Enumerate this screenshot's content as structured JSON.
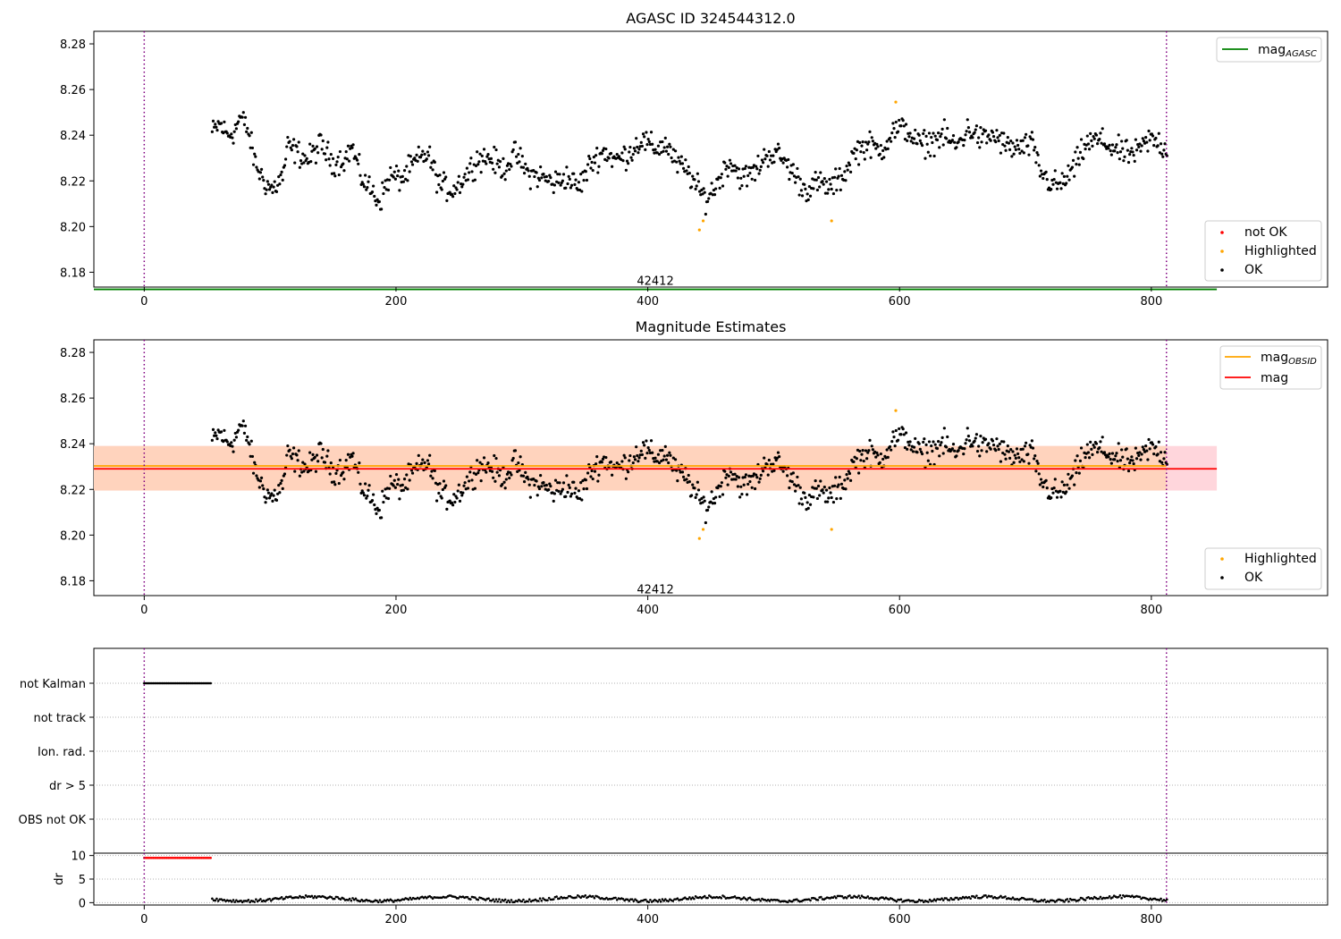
{
  "chart_data": [
    {
      "type": "scatter",
      "title": "AGASC ID 324544312.0",
      "xlim": [
        -40,
        940
      ],
      "ylim": [
        8.1735,
        8.2855
      ],
      "xticks": [
        0,
        200,
        400,
        600,
        800
      ],
      "yticks": [
        8.18,
        8.2,
        8.22,
        8.24,
        8.26,
        8.28
      ],
      "vlines": [
        0,
        812
      ],
      "hlines": [
        {
          "name": "mag_AGASC",
          "y": 8.1725,
          "color": "#008000"
        }
      ],
      "annotation": {
        "text": "42412",
        "x": 406,
        "y": 8.1765
      },
      "legend_upper": [
        {
          "label": "mag",
          "sub": "AGASC",
          "color": "#008000"
        }
      ],
      "legend_lower": [
        {
          "label": "not OK",
          "color": "#ff0000"
        },
        {
          "label": "Highlighted",
          "color": "#ffa500"
        },
        {
          "label": "OK",
          "color": "#000000"
        }
      ],
      "points": "mag_series"
    },
    {
      "type": "scatter",
      "title": "Magnitude Estimates",
      "xlim": [
        -40,
        940
      ],
      "ylim": [
        8.1735,
        8.2855
      ],
      "xticks": [
        0,
        200,
        400,
        600,
        800
      ],
      "yticks": [
        8.18,
        8.2,
        8.22,
        8.24,
        8.26,
        8.28
      ],
      "vlines": [
        0,
        812
      ],
      "band_pink": [
        8.2195,
        8.239
      ],
      "band_orange": [
        8.2195,
        8.239
      ],
      "band_x": [
        -40,
        852
      ],
      "mag_obsid": 8.2295,
      "mag": 8.229,
      "annotation": {
        "text": "42412",
        "x": 406,
        "y": 8.1765
      },
      "legend_upper": [
        {
          "label": "mag",
          "sub": "OBSID",
          "color": "#ffa500"
        },
        {
          "label": "mag",
          "sub": "",
          "color": "#ff0000"
        }
      ],
      "legend_lower": [
        {
          "label": "Highlighted",
          "color": "#ffa500"
        },
        {
          "label": "OK",
          "color": "#000000"
        }
      ],
      "points": "mag_series"
    },
    {
      "type": "scatter",
      "xlim": [
        -40,
        940
      ],
      "categories": [
        "not Kalman",
        "not track",
        "Ion. rad.",
        "dr > 5",
        "OBS not OK"
      ],
      "flag_ranges": [
        {
          "category": "not Kalman",
          "x": [
            0,
            54
          ]
        }
      ],
      "vlines": [
        0,
        812
      ]
    },
    {
      "type": "scatter",
      "xlim": [
        -40,
        940
      ],
      "ylim": [
        -0.5,
        10.5
      ],
      "xticks": [
        0,
        200,
        400,
        600,
        800
      ],
      "yticks": [
        0,
        5,
        10
      ],
      "ylabel": "dr",
      "dr_flagged": {
        "x": [
          0,
          54
        ],
        "value": 9.5,
        "color": "#ff0000"
      },
      "vlines": [
        0,
        812
      ]
    }
  ],
  "mag_series_anchors": [
    [
      54,
      8.241
    ],
    [
      60,
      8.245
    ],
    [
      66,
      8.24
    ],
    [
      72,
      8.242
    ],
    [
      76,
      8.248
    ],
    [
      82,
      8.243
    ],
    [
      88,
      8.228
    ],
    [
      95,
      8.22
    ],
    [
      102,
      8.216
    ],
    [
      110,
      8.222
    ],
    [
      114,
      8.235
    ],
    [
      120,
      8.233
    ],
    [
      130,
      8.229
    ],
    [
      140,
      8.236
    ],
    [
      150,
      8.228
    ],
    [
      160,
      8.23
    ],
    [
      165,
      8.235
    ],
    [
      172,
      8.222
    ],
    [
      180,
      8.216
    ],
    [
      187,
      8.211
    ],
    [
      195,
      8.222
    ],
    [
      205,
      8.221
    ],
    [
      215,
      8.228
    ],
    [
      225,
      8.232
    ],
    [
      235,
      8.218
    ],
    [
      245,
      8.216
    ],
    [
      255,
      8.222
    ],
    [
      265,
      8.23
    ],
    [
      275,
      8.23
    ],
    [
      285,
      8.225
    ],
    [
      295,
      8.232
    ],
    [
      305,
      8.223
    ],
    [
      315,
      8.222
    ],
    [
      325,
      8.219
    ],
    [
      335,
      8.222
    ],
    [
      345,
      8.217
    ],
    [
      355,
      8.228
    ],
    [
      365,
      8.233
    ],
    [
      375,
      8.229
    ],
    [
      385,
      8.232
    ],
    [
      395,
      8.238
    ],
    [
      405,
      8.234
    ],
    [
      415,
      8.236
    ],
    [
      422,
      8.228
    ],
    [
      432,
      8.224
    ],
    [
      440,
      8.216
    ],
    [
      447,
      8.212
    ],
    [
      455,
      8.219
    ],
    [
      465,
      8.229
    ],
    [
      475,
      8.221
    ],
    [
      485,
      8.224
    ],
    [
      495,
      8.232
    ],
    [
      505,
      8.231
    ],
    [
      515,
      8.224
    ],
    [
      525,
      8.216
    ],
    [
      535,
      8.219
    ],
    [
      545,
      8.217
    ],
    [
      555,
      8.222
    ],
    [
      565,
      8.233
    ],
    [
      575,
      8.236
    ],
    [
      585,
      8.233
    ],
    [
      595,
      8.242
    ],
    [
      605,
      8.243
    ],
    [
      615,
      8.236
    ],
    [
      625,
      8.237
    ],
    [
      635,
      8.24
    ],
    [
      645,
      8.235
    ],
    [
      655,
      8.243
    ],
    [
      665,
      8.238
    ],
    [
      675,
      8.24
    ],
    [
      685,
      8.235
    ],
    [
      695,
      8.234
    ],
    [
      705,
      8.236
    ],
    [
      712,
      8.224
    ],
    [
      720,
      8.219
    ],
    [
      728,
      8.218
    ],
    [
      738,
      8.225
    ],
    [
      748,
      8.236
    ],
    [
      758,
      8.238
    ],
    [
      768,
      8.235
    ],
    [
      778,
      8.232
    ],
    [
      788,
      8.232
    ],
    [
      798,
      8.238
    ],
    [
      806,
      8.237
    ],
    [
      812,
      8.233
    ]
  ],
  "highlighted_points": [
    [
      441,
      8.1985
    ],
    [
      444,
      8.2025
    ],
    [
      546,
      8.2025
    ],
    [
      597,
      8.2545
    ]
  ],
  "colors": {
    "ok": "#000000",
    "not_ok": "#ff0000",
    "highlighted": "#ffa500",
    "agasc_line": "#008000",
    "mag_line": "#ff0000",
    "mag_obsid_line": "#ffa500",
    "band_pink": "#ffd6dc",
    "band_orange": "#ffd3bd",
    "vline": "#800080"
  }
}
